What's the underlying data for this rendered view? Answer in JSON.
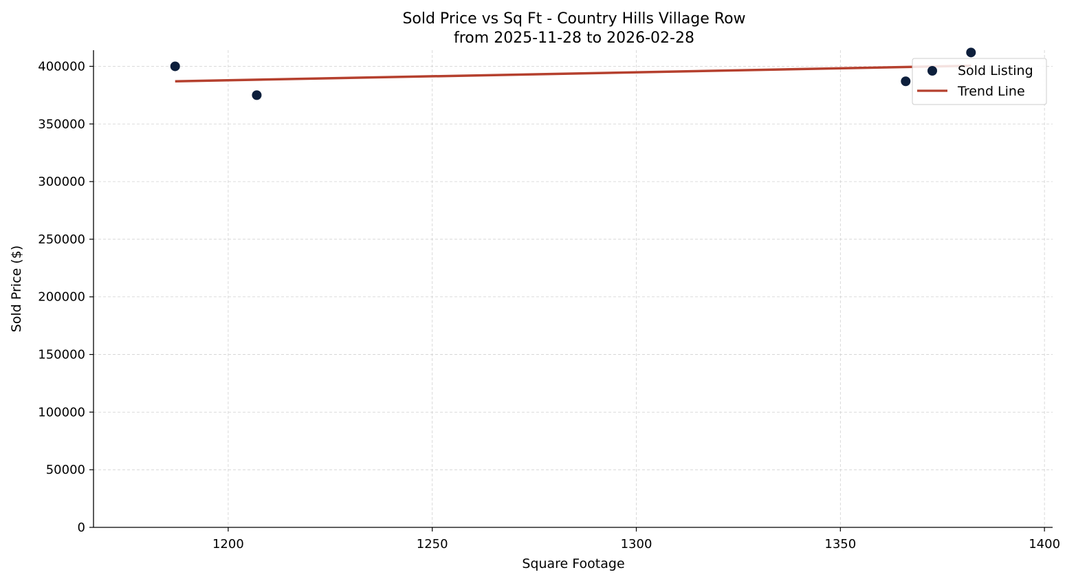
{
  "chart_data": {
    "type": "scatter",
    "title": "Sold Price vs Sq Ft - Country Hills Village Row",
    "subtitle": "from 2025-11-28 to 2026-02-28",
    "xlabel": "Square Footage",
    "ylabel": "Sold Price ($)",
    "xlim": [
      1167,
      1402
    ],
    "ylim": [
      0,
      414000
    ],
    "x_ticks": [
      1200,
      1250,
      1300,
      1350,
      1400
    ],
    "y_ticks": [
      0,
      50000,
      100000,
      150000,
      200000,
      250000,
      300000,
      350000,
      400000
    ],
    "grid": true,
    "legend_position": "top-right",
    "series": [
      {
        "name": "Sold Listing",
        "kind": "scatter",
        "color": "#0d1f3c",
        "points": [
          {
            "x": 1187,
            "y": 400000
          },
          {
            "x": 1207,
            "y": 375000
          },
          {
            "x": 1366,
            "y": 387000
          },
          {
            "x": 1382,
            "y": 412000
          }
        ]
      },
      {
        "name": "Trend Line",
        "kind": "line",
        "color": "#b5402e",
        "points": [
          {
            "x": 1187,
            "y": 387000
          },
          {
            "x": 1382,
            "y": 400500
          }
        ]
      }
    ]
  }
}
